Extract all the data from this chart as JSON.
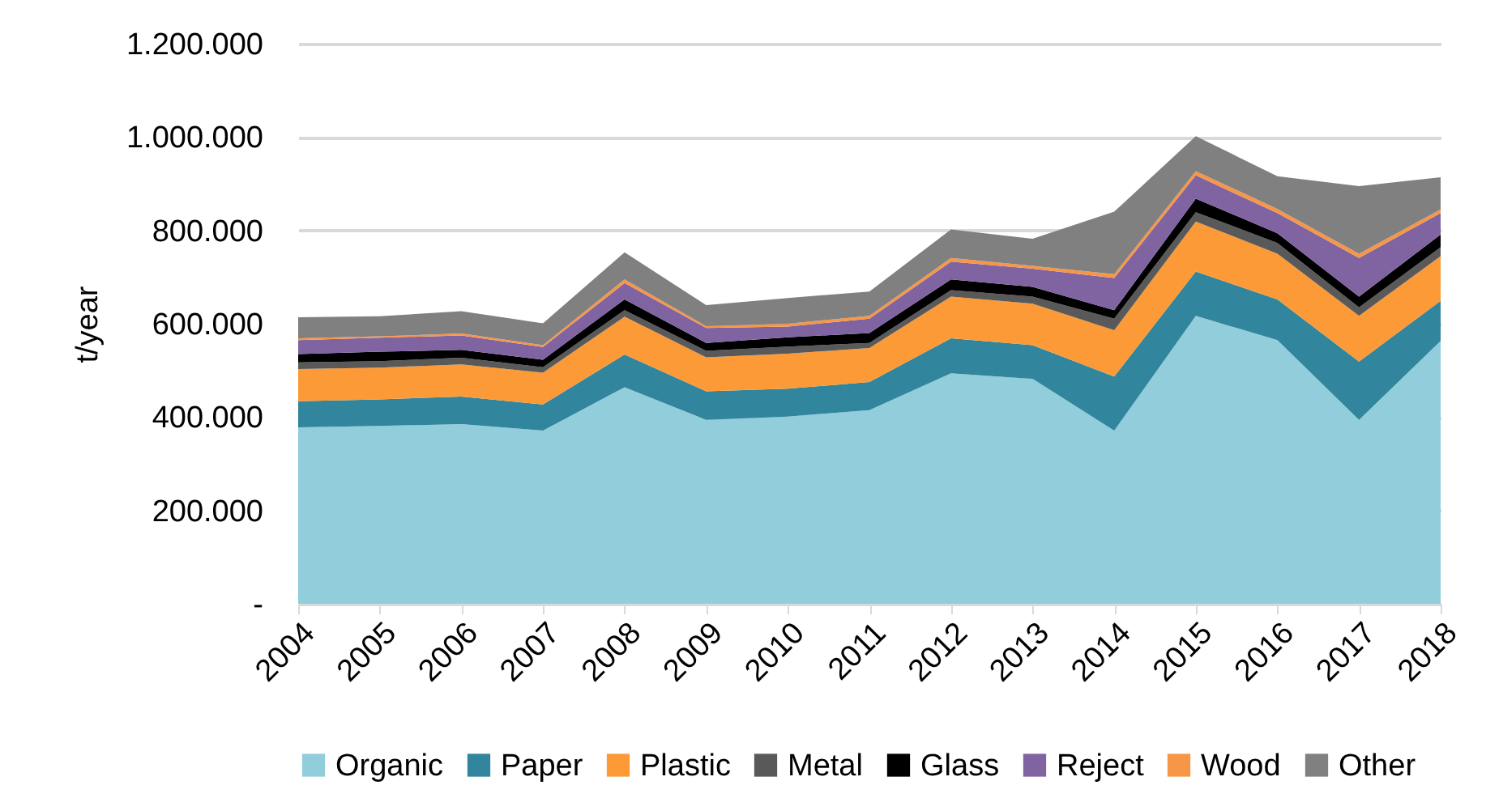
{
  "chart_data": {
    "type": "area",
    "stacked": true,
    "ylabel": "t/year",
    "categories": [
      "2004",
      "2005",
      "2006",
      "2007",
      "2008",
      "2009",
      "2010",
      "2011",
      "2012",
      "2013",
      "2014",
      "2015",
      "2016",
      "2017",
      "2018"
    ],
    "ylim": [
      0,
      1200000
    ],
    "yticks": [
      {
        "value": 0,
        "label": "-"
      },
      {
        "value": 200000,
        "label": "200.000"
      },
      {
        "value": 400000,
        "label": "400.000"
      },
      {
        "value": 600000,
        "label": "600.000"
      },
      {
        "value": 800000,
        "label": "800.000"
      },
      {
        "value": 1000000,
        "label": "1.000.000"
      },
      {
        "value": 1200000,
        "label": "1.200.000"
      }
    ],
    "grid": "y",
    "legend": "bottom",
    "series": [
      {
        "name": "Organic",
        "color": "#92cddc",
        "values": [
          378000,
          381000,
          385000,
          371000,
          464000,
          394000,
          401000,
          415000,
          494000,
          482000,
          371000,
          617000,
          565000,
          394000,
          563000
        ]
      },
      {
        "name": "Paper",
        "color": "#31859c",
        "values": [
          56000,
          57000,
          59000,
          56000,
          70000,
          61000,
          60000,
          60000,
          75000,
          72000,
          116000,
          95000,
          87000,
          125000,
          86000
        ]
      },
      {
        "name": "Plastic",
        "color": "#fb9a37",
        "values": [
          69000,
          68000,
          69000,
          68000,
          81000,
          73000,
          75000,
          73000,
          89000,
          89000,
          99000,
          107000,
          98000,
          98000,
          96000
        ]
      },
      {
        "name": "Metal",
        "color": "#595959",
        "values": [
          14000,
          14000,
          14000,
          12000,
          14000,
          14000,
          15000,
          11000,
          14000,
          15000,
          25000,
          20000,
          23000,
          18000,
          19000
        ]
      },
      {
        "name": "Glass",
        "color": "#000000",
        "values": [
          18000,
          20000,
          17000,
          16000,
          23000,
          17000,
          20000,
          21000,
          23000,
          21000,
          18000,
          29000,
          21000,
          23000,
          27000
        ]
      },
      {
        "name": "Reject",
        "color": "#8064a2",
        "values": [
          30000,
          30000,
          31000,
          27000,
          35000,
          32000,
          23000,
          31000,
          38000,
          39000,
          69000,
          50000,
          43000,
          83000,
          46000
        ]
      },
      {
        "name": "Wood",
        "color": "#f79646",
        "values": [
          4000,
          3000,
          4000,
          4000,
          8000,
          4000,
          6000,
          6000,
          8000,
          6000,
          8000,
          9000,
          9000,
          9000,
          8000
        ]
      },
      {
        "name": "Other",
        "color": "#808080",
        "values": [
          45000,
          43000,
          48000,
          47000,
          58000,
          45000,
          55000,
          52000,
          61000,
          58000,
          134000,
          75000,
          70000,
          145000,
          69000
        ]
      }
    ]
  }
}
